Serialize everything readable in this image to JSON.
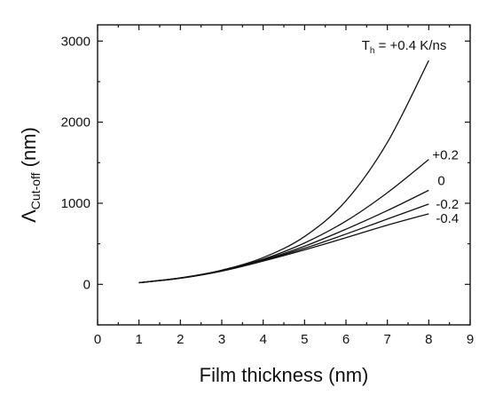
{
  "chart_data": {
    "type": "line",
    "xlabel": "Film thickness (nm)",
    "ylabel": "Λ",
    "ylabel_subscript": "Cut-off",
    "ylabel_unit": " (nm)",
    "xlim": [
      0,
      9
    ],
    "ylim": [
      -500,
      3200
    ],
    "xticks": [
      0,
      1,
      2,
      3,
      4,
      5,
      6,
      7,
      8,
      9
    ],
    "yticks": [
      0,
      1000,
      2000,
      3000
    ],
    "legend_prefix": "T",
    "legend_prefix_subscript": "h",
    "series": [
      {
        "name": " = +0.4 K/ns",
        "x": [
          1,
          2,
          3,
          4,
          5,
          6,
          7,
          8
        ],
        "y": [
          20,
          80,
          175,
          330,
          590,
          1030,
          1750,
          2760
        ]
      },
      {
        "name": "+0.2",
        "x": [
          1,
          2,
          3,
          4,
          5,
          6,
          7,
          8
        ],
        "y": [
          20,
          78,
          170,
          310,
          510,
          780,
          1130,
          1540
        ]
      },
      {
        "name": "0",
        "x": [
          1,
          2,
          3,
          4,
          5,
          6,
          7,
          8
        ],
        "y": [
          20,
          77,
          167,
          300,
          470,
          680,
          910,
          1160
        ]
      },
      {
        "name": "-0.2",
        "x": [
          1,
          2,
          3,
          4,
          5,
          6,
          7,
          8
        ],
        "y": [
          20,
          76,
          165,
          293,
          445,
          620,
          805,
          990
        ]
      },
      {
        "name": "-0.4",
        "x": [
          1,
          2,
          3,
          4,
          5,
          6,
          7,
          8
        ],
        "y": [
          20,
          75,
          163,
          287,
          425,
          575,
          730,
          870
        ]
      }
    ]
  }
}
